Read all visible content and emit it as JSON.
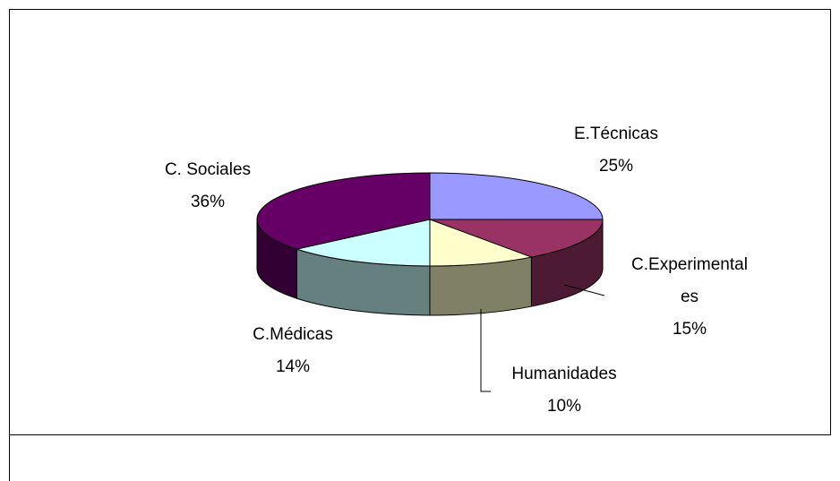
{
  "chart_data": {
    "type": "pie3d",
    "categories": [
      "E.Técnicas",
      "C.Experimentales",
      "Humanidades",
      "C.Médicas",
      "C. Sociales"
    ],
    "values": [
      25,
      15,
      10,
      14,
      36
    ],
    "value_labels": [
      "25%",
      "15%",
      "10%",
      "14%",
      "36%"
    ],
    "colors": [
      "#9999ff",
      "#993366",
      "#ffffcc",
      "#ccffff",
      "#660066"
    ]
  }
}
